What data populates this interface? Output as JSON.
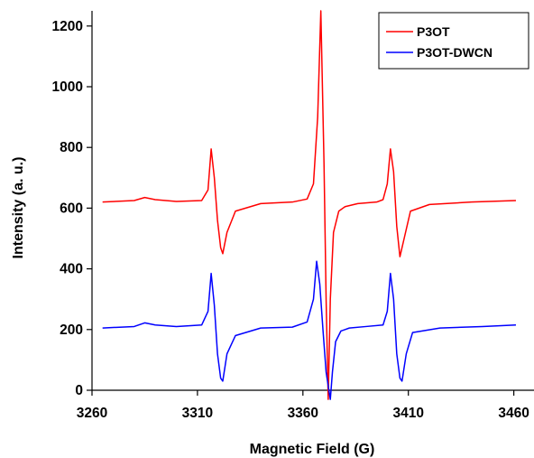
{
  "chart_data": {
    "type": "line",
    "title": "",
    "xlabel": "Magnetic Field (G)",
    "ylabel": "Intensity (a. u.)",
    "xlim": [
      3260,
      3470
    ],
    "ylim": [
      0,
      1250
    ],
    "xticks": [
      3260,
      3310,
      3360,
      3410,
      3460
    ],
    "yticks": [
      0,
      200,
      400,
      600,
      800,
      1000,
      1200
    ],
    "legend_position": "top-right",
    "grid": false,
    "series": [
      {
        "name": "P3OT",
        "color": "#ff0000",
        "x": [
          3265,
          3280,
          3285,
          3290,
          3300,
          3312,
          3315,
          3316.5,
          3318,
          3319.5,
          3321,
          3322,
          3324,
          3328,
          3340,
          3355,
          3362,
          3365,
          3367,
          3368.5,
          3370,
          3371,
          3372,
          3373,
          3374.5,
          3377,
          3380,
          3386,
          3395,
          3398,
          3400,
          3401.5,
          3403,
          3404.5,
          3406,
          3408,
          3411,
          3420,
          3440,
          3461
        ],
        "y": [
          620,
          625,
          635,
          628,
          622,
          625,
          660,
          795,
          700,
          560,
          470,
          450,
          520,
          590,
          615,
          620,
          630,
          680,
          900,
          1250,
          750,
          300,
          -30,
          300,
          520,
          590,
          605,
          615,
          620,
          628,
          680,
          795,
          720,
          540,
          440,
          500,
          590,
          612,
          620,
          625
        ]
      },
      {
        "name": "P3OT-DWCN",
        "color": "#0000ff",
        "x": [
          3265,
          3280,
          3285,
          3290,
          3300,
          3312,
          3315,
          3316.5,
          3318,
          3319.5,
          3321,
          3322,
          3324,
          3328,
          3340,
          3355,
          3362,
          3365,
          3366.5,
          3368,
          3369.5,
          3371,
          3373,
          3374,
          3375.5,
          3378,
          3382,
          3390,
          3398,
          3400,
          3401.5,
          3403,
          3404.5,
          3406,
          3407,
          3409,
          3412,
          3425,
          3445,
          3461
        ],
        "y": [
          205,
          210,
          222,
          215,
          210,
          215,
          260,
          385,
          280,
          120,
          40,
          30,
          120,
          180,
          205,
          208,
          225,
          300,
          425,
          350,
          200,
          60,
          -30,
          60,
          160,
          195,
          205,
          210,
          215,
          260,
          385,
          300,
          120,
          40,
          30,
          120,
          190,
          205,
          210,
          215
        ]
      }
    ]
  }
}
